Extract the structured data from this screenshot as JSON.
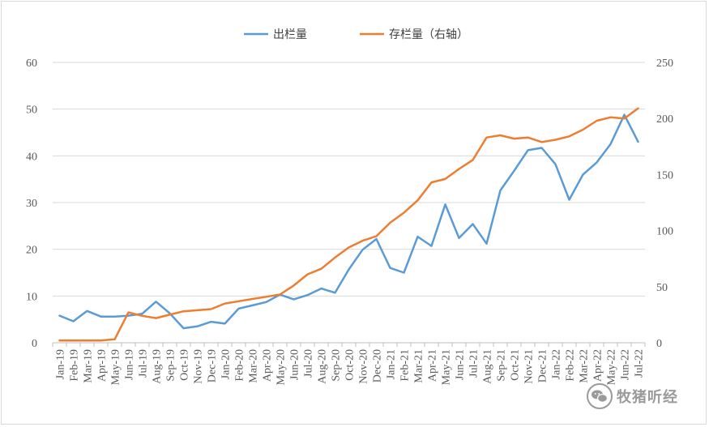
{
  "chart_data": {
    "type": "line",
    "title": "",
    "categories": [
      "Jan-19",
      "Feb-19",
      "Mar-19",
      "Apr-19",
      "May-19",
      "Jun-19",
      "Jul-19",
      "Aug-19",
      "Sep-19",
      "Oct-19",
      "Nov-19",
      "Dec-19",
      "Jan-20",
      "Feb-20",
      "Mar-20",
      "Apr-20",
      "May-20",
      "Jun-20",
      "Jul-20",
      "Aug-20",
      "Sep-20",
      "Oct-20",
      "Nov-20",
      "Dec-20",
      "Jan-21",
      "Feb-21",
      "Mar-21",
      "Apr-21",
      "May-21",
      "Jun-21",
      "Jul-21",
      "Aug-21",
      "Sep-21",
      "Oct-21",
      "Nov-21",
      "Dec-21",
      "Jan-22",
      "Feb-22",
      "Mar-22",
      "Apr-22",
      "May-22",
      "Jun-22",
      "Jul-22"
    ],
    "series": [
      {
        "name": "出栏量",
        "axis": "left",
        "color": "#5b9bd5",
        "values": [
          5.8,
          4.6,
          6.8,
          5.6,
          5.6,
          5.8,
          6.2,
          8.8,
          6.3,
          3.1,
          3.5,
          4.5,
          4.1,
          7.3,
          8.0,
          8.7,
          10.3,
          9.3,
          10.2,
          11.6,
          10.7,
          15.7,
          19.9,
          22.2,
          16.0,
          15.0,
          22.7,
          20.7,
          29.6,
          22.4,
          25.4,
          21.2,
          32.6,
          36.8,
          41.2,
          41.7,
          38.2,
          30.6,
          36.0,
          38.6,
          42.5,
          48.8,
          43.0
        ]
      },
      {
        "name": "存栏量（右轴）",
        "axis": "right",
        "color": "#ed7d31",
        "values": [
          2,
          2,
          2,
          2,
          3,
          27,
          24,
          22,
          25,
          28,
          29,
          30,
          35,
          37,
          39,
          41,
          43,
          51,
          61,
          66,
          76,
          85,
          91,
          95,
          107,
          116,
          127,
          143,
          146,
          155,
          163,
          183,
          185,
          182,
          183,
          179,
          181,
          184,
          190,
          198,
          201,
          200,
          209
        ]
      }
    ],
    "y_left": {
      "min": 0,
      "max": 60,
      "ticks": [
        "0",
        "10",
        "20",
        "30",
        "40",
        "50",
        "60"
      ]
    },
    "y_right": {
      "min": 0,
      "max": 250,
      "ticks": [
        "0",
        "50",
        "100",
        "150",
        "200",
        "250"
      ]
    },
    "grid": true,
    "legend_position": "top-center"
  },
  "watermark": {
    "text": "牧猪听经",
    "icon": "wechat-official-account-icon"
  }
}
